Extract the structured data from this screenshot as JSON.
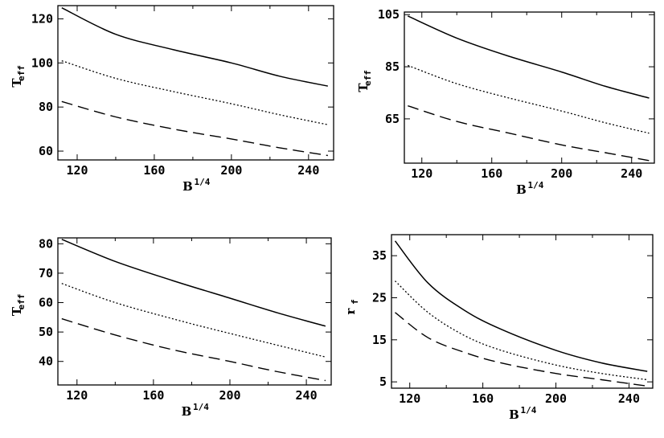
{
  "chart_data": [
    {
      "type": "line",
      "xlabel": "B",
      "xlabel_sup": "1/4",
      "ylabel": "T",
      "ylabel_sub": "eff",
      "xlim": [
        110,
        253
      ],
      "ylim": [
        56,
        126
      ],
      "xticks": [
        120,
        160,
        200,
        240
      ],
      "yticks": [
        60,
        80,
        100,
        120
      ],
      "grid": false,
      "series": [
        {
          "style": "solid",
          "x": [
            112,
            140,
            170,
            200,
            225,
            250
          ],
          "y": [
            125,
            113,
            106,
            100,
            94,
            89.5
          ]
        },
        {
          "style": "dotted",
          "x": [
            112,
            140,
            170,
            200,
            225,
            250
          ],
          "y": [
            101,
            93,
            87,
            81.5,
            76.5,
            72
          ]
        },
        {
          "style": "dashed",
          "x": [
            112,
            140,
            170,
            200,
            225,
            250
          ],
          "y": [
            82.5,
            75.5,
            70,
            65.5,
            61.5,
            58
          ]
        }
      ]
    },
    {
      "type": "line",
      "xlabel": "B",
      "xlabel_sup": "1/4",
      "ylabel": "T",
      "ylabel_sub": "eff",
      "xlim": [
        110,
        253
      ],
      "ylim": [
        48,
        106
      ],
      "xticks": [
        120,
        160,
        200,
        240
      ],
      "yticks": [
        65,
        85,
        105
      ],
      "grid": false,
      "series": [
        {
          "style": "solid",
          "x": [
            112,
            140,
            170,
            200,
            225,
            250
          ],
          "y": [
            104.5,
            96,
            89,
            83,
            77.5,
            73
          ]
        },
        {
          "style": "dotted",
          "x": [
            112,
            140,
            170,
            200,
            225,
            250
          ],
          "y": [
            85.5,
            78.5,
            73,
            68,
            63.5,
            59.5
          ]
        },
        {
          "style": "dashed",
          "x": [
            112,
            140,
            170,
            200,
            225,
            250
          ],
          "y": [
            70,
            64,
            59.5,
            55,
            52,
            49
          ]
        }
      ]
    },
    {
      "type": "line",
      "xlabel": "B",
      "xlabel_sup": "1/4",
      "ylabel": "T",
      "ylabel_sub": "eff",
      "xlim": [
        110,
        253
      ],
      "ylim": [
        32,
        82
      ],
      "xticks": [
        120,
        160,
        200,
        240
      ],
      "yticks": [
        40,
        50,
        60,
        70,
        80
      ],
      "grid": false,
      "series": [
        {
          "style": "solid",
          "x": [
            112,
            140,
            170,
            200,
            225,
            250
          ],
          "y": [
            81.5,
            74,
            67.5,
            61.5,
            56.5,
            52
          ]
        },
        {
          "style": "dotted",
          "x": [
            112,
            140,
            170,
            200,
            225,
            250
          ],
          "y": [
            66.5,
            60,
            54.5,
            49.5,
            45.5,
            41.5
          ]
        },
        {
          "style": "dashed",
          "x": [
            112,
            140,
            170,
            200,
            225,
            250
          ],
          "y": [
            54.5,
            49,
            44,
            40,
            36.5,
            33.5
          ]
        }
      ]
    },
    {
      "type": "line",
      "xlabel": "B",
      "xlabel_sup": "1/4",
      "ylabel": "r",
      "ylabel_sub": "f",
      "xlim": [
        110,
        253
      ],
      "ylim": [
        3.5,
        40
      ],
      "xticks": [
        120,
        160,
        200,
        240
      ],
      "yticks": [
        5,
        15,
        25,
        35
      ],
      "grid": false,
      "series": [
        {
          "style": "solid",
          "x": [
            112,
            130,
            150,
            170,
            200,
            225,
            250
          ],
          "y": [
            38.5,
            28.5,
            22,
            17.5,
            12.5,
            9.5,
            7.5
          ]
        },
        {
          "style": "dotted",
          "x": [
            112,
            130,
            150,
            170,
            200,
            225,
            250
          ],
          "y": [
            29,
            21.5,
            16,
            12.5,
            9,
            7,
            5.5
          ]
        },
        {
          "style": "dashed",
          "x": [
            112,
            130,
            150,
            170,
            200,
            225,
            250
          ],
          "y": [
            21.5,
            15.5,
            12,
            9.5,
            7,
            5.5,
            4
          ]
        }
      ]
    }
  ]
}
